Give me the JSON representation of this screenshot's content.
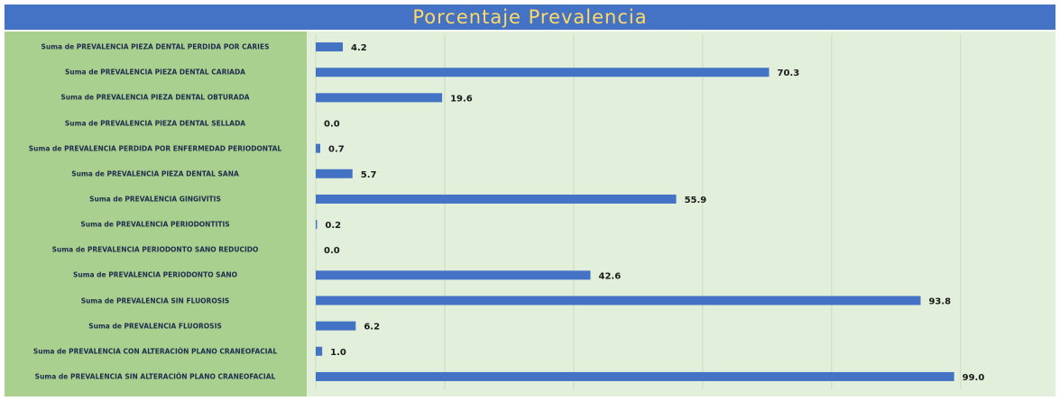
{
  "chart_data": {
    "type": "bar",
    "orientation": "horizontal",
    "title": "Porcentaje Prevalencia",
    "categories": [
      "Suma de PREVALENCIA PIEZA DENTAL PERDIDA POR CARIES",
      "Suma de PREVALENCIA PIEZA DENTAL CARIADA",
      "Suma de PREVALENCIA PIEZA DENTAL OBTURADA",
      "Suma de PREVALENCIA PIEZA DENTAL SELLADA",
      "Suma de PREVALENCIA PERDIDA POR ENFERMEDAD PERIODONTAL",
      "Suma de PREVALENCIA PIEZA DENTAL SANA",
      "Suma de PREVALENCIA GINGIVITIS",
      "Suma de PREVALENCIA PERIODONTITIS",
      "Suma de PREVALENCIA PERIODONTO SANO REDUCIDO",
      "Suma de PREVALENCIA PERIODONTO SANO",
      "Suma de PREVALENCIA SIN FLUOROSIS",
      "Suma de PREVALENCIA FLUOROSIS",
      "Suma de PREVALENCIA CON ALTERACIÓN PLANO CRANEOFACIAL",
      "Suma de PREVALENCIA SIN ALTERACIÓN PLANO CRANEOFACIAL"
    ],
    "values": [
      4.2,
      70.3,
      19.6,
      0.0,
      0.7,
      5.7,
      55.9,
      0.2,
      0.0,
      42.6,
      93.8,
      6.2,
      1.0,
      99.0
    ],
    "value_labels": [
      "4.2",
      "70.3",
      "19.6",
      "0.0",
      "0.7",
      "5.7",
      "55.9",
      "0.2",
      "0.0",
      "42.6",
      "93.8",
      "6.2",
      "1.0",
      "99.0"
    ],
    "color": "#4472c4",
    "xlim": [
      0,
      115
    ],
    "xticks": [
      0,
      20,
      40,
      60,
      80,
      100
    ],
    "grid": true
  }
}
